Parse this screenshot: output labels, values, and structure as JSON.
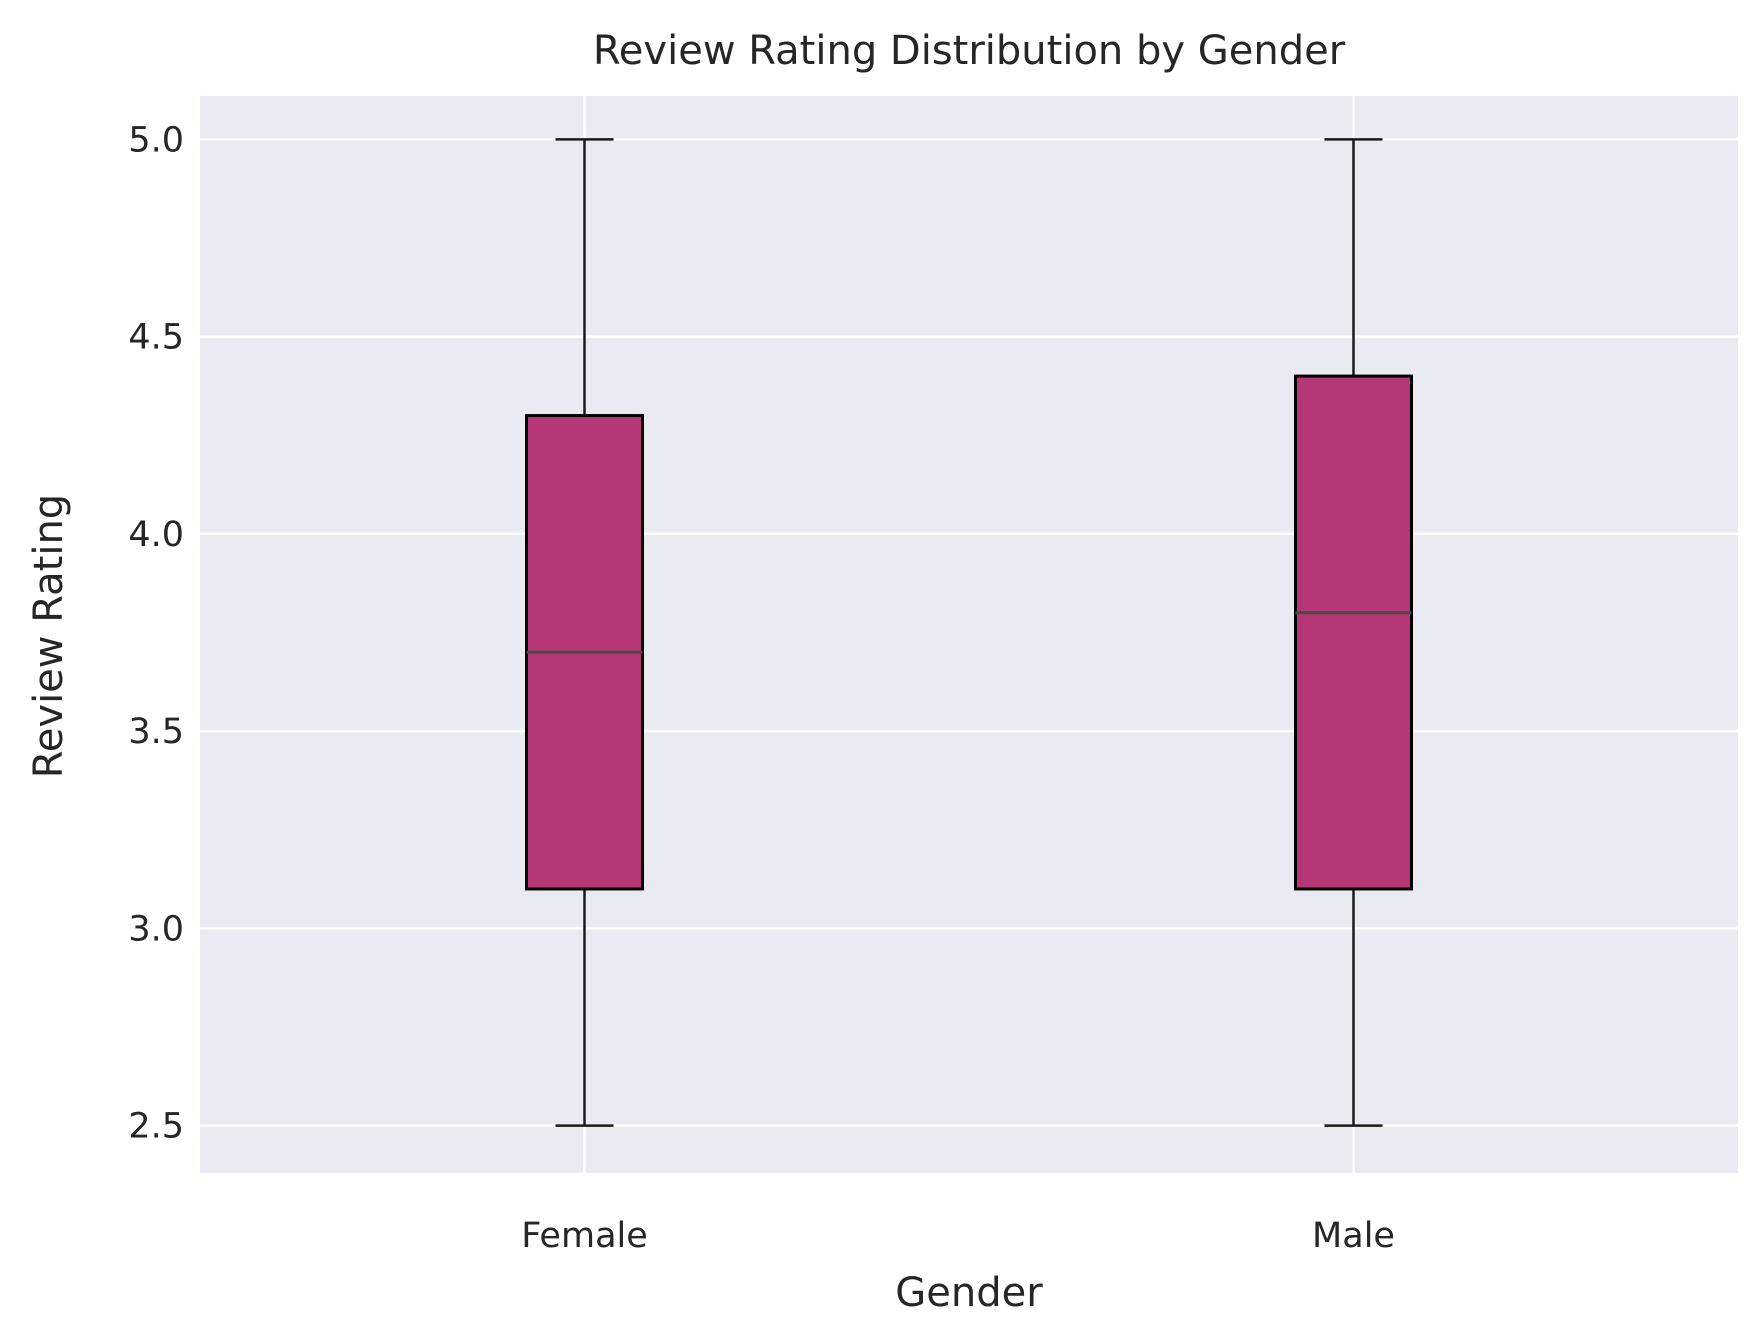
{
  "chart_data": {
    "type": "box",
    "title": "Review Rating Distribution by Gender",
    "xlabel": "Gender",
    "ylabel": "Review Rating",
    "categories": [
      "Female",
      "Male"
    ],
    "boxes": [
      {
        "name": "Female",
        "whisker_low": 2.5,
        "q1": 3.1,
        "median": 3.7,
        "q3": 4.3,
        "whisker_high": 5.0
      },
      {
        "name": "Male",
        "whisker_low": 2.5,
        "q1": 3.1,
        "median": 3.8,
        "q3": 4.4,
        "whisker_high": 5.0
      }
    ],
    "ylim": [
      2.38,
      5.11
    ],
    "yticks": [
      "2.5",
      "3.0",
      "3.5",
      "4.0",
      "4.5",
      "5.0"
    ],
    "grid": true,
    "colors": {
      "box_fill": "#b63775",
      "box_edge": "#000000",
      "median": "#4a4a4a",
      "whisker": "#1a1a1a",
      "plot_background": "#eaeaf2",
      "grid": "#ffffff"
    }
  }
}
